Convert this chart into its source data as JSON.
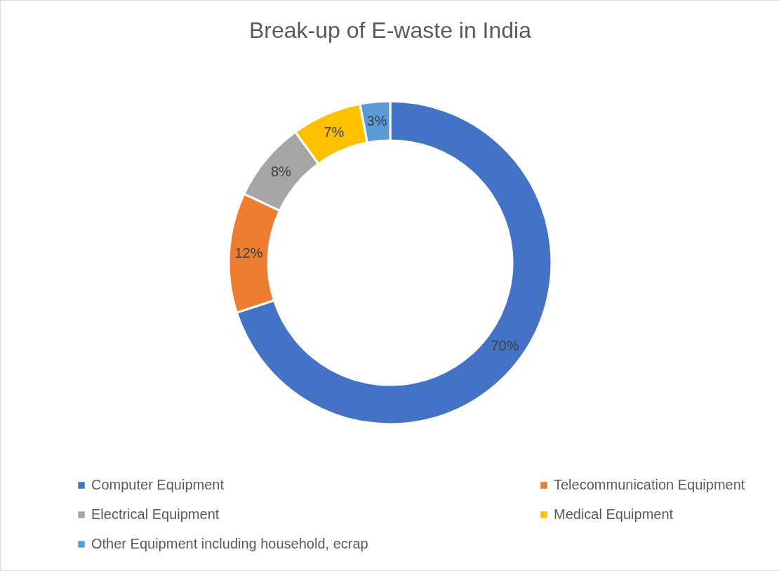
{
  "chart_data": {
    "type": "donut",
    "title": "Break-up of E-waste in India",
    "categories": [
      "Computer Equipment",
      "Telecommunication Equipment",
      "Electrical Equipment",
      "Medical Equipment",
      "Other Equipment including household, ecrap"
    ],
    "values": [
      70,
      12,
      8,
      7,
      3
    ],
    "colors": [
      "#4472c4",
      "#ed7d31",
      "#a5a5a5",
      "#ffc000",
      "#5b9bd5"
    ],
    "value_labels": [
      "70%",
      "12%",
      "8%",
      "7%",
      "3%"
    ],
    "legend": "bottom"
  }
}
